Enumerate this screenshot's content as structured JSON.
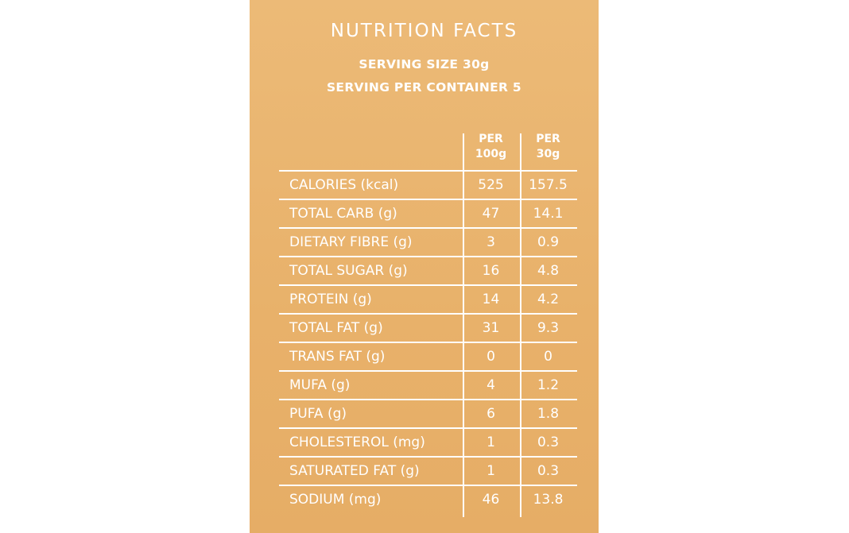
{
  "label": {
    "title": "NUTRITION FACTS",
    "serving_size": "SERVING SIZE 30g",
    "servings_per_container": "SERVING PER CONTAINER 5",
    "colors": {
      "panel": "#e9b46e",
      "text": "#ffffff"
    },
    "columns": [
      {
        "line1": "PER",
        "line2": "100g"
      },
      {
        "line1": "PER",
        "line2": "30g"
      }
    ],
    "rows": [
      {
        "name": "CALORIES (kcal)",
        "per100": "525",
        "per30": "157.5"
      },
      {
        "name": "TOTAL CARB (g)",
        "per100": "47",
        "per30": "14.1"
      },
      {
        "name": "DIETARY FIBRE (g)",
        "per100": "3",
        "per30": "0.9"
      },
      {
        "name": "TOTAL SUGAR (g)",
        "per100": "16",
        "per30": "4.8"
      },
      {
        "name": "PROTEIN (g)",
        "per100": "14",
        "per30": "4.2"
      },
      {
        "name": "TOTAL FAT (g)",
        "per100": "31",
        "per30": "9.3"
      },
      {
        "name": "TRANS FAT (g)",
        "per100": "0",
        "per30": "0"
      },
      {
        "name": "MUFA (g)",
        "per100": "4",
        "per30": "1.2"
      },
      {
        "name": "PUFA (g)",
        "per100": "6",
        "per30": "1.8"
      },
      {
        "name": "CHOLESTEROL (mg)",
        "per100": "1",
        "per30": "0.3"
      },
      {
        "name": "SATURATED FAT (g)",
        "per100": "1",
        "per30": "0.3"
      },
      {
        "name": "SODIUM (mg)",
        "per100": "46",
        "per30": "13.8"
      }
    ]
  }
}
